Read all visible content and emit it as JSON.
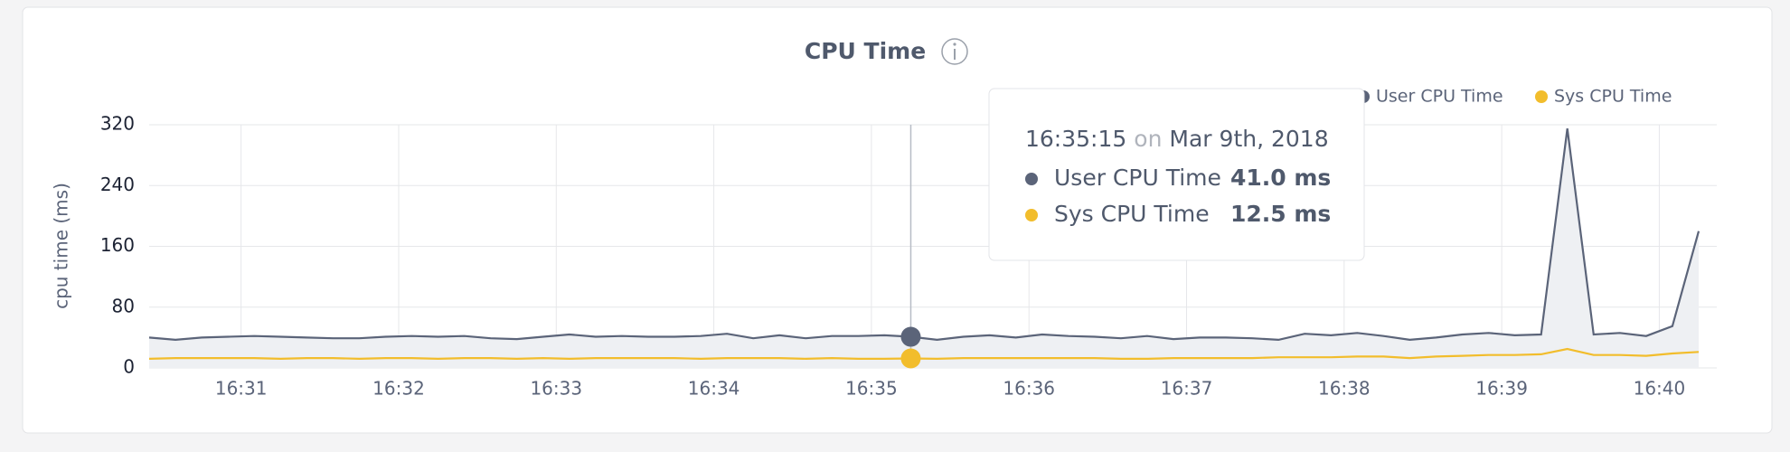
{
  "chart_data": {
    "type": "line",
    "title": "CPU Time",
    "y_label": "cpu time (ms)",
    "x": [
      "16:30:25",
      "16:30:35",
      "16:30:45",
      "16:30:55",
      "16:31:05",
      "16:31:15",
      "16:31:25",
      "16:31:35",
      "16:31:45",
      "16:31:55",
      "16:32:05",
      "16:32:15",
      "16:32:25",
      "16:32:35",
      "16:32:45",
      "16:32:55",
      "16:33:05",
      "16:33:15",
      "16:33:25",
      "16:33:35",
      "16:33:45",
      "16:33:55",
      "16:34:05",
      "16:34:15",
      "16:34:25",
      "16:34:35",
      "16:34:45",
      "16:34:55",
      "16:35:05",
      "16:35:15",
      "16:35:25",
      "16:35:35",
      "16:35:45",
      "16:35:55",
      "16:36:05",
      "16:36:15",
      "16:36:25",
      "16:36:35",
      "16:36:45",
      "16:36:55",
      "16:37:05",
      "16:37:15",
      "16:37:25",
      "16:37:35",
      "16:37:45",
      "16:37:55",
      "16:38:05",
      "16:38:15",
      "16:38:25",
      "16:38:35",
      "16:38:45",
      "16:38:55",
      "16:39:05",
      "16:39:15",
      "16:39:25",
      "16:39:35",
      "16:39:45",
      "16:39:55",
      "16:40:05",
      "16:40:15"
    ],
    "series": [
      {
        "name": "User CPU Time",
        "color": "#5b6479",
        "values": [
          40,
          37,
          40,
          41,
          42,
          41,
          40,
          39,
          39,
          41,
          42,
          41,
          42,
          39,
          38,
          41,
          44,
          41,
          42,
          41,
          41,
          42,
          45,
          39,
          43,
          39,
          42,
          42,
          43,
          41,
          37,
          41,
          43,
          40,
          44,
          42,
          41,
          39,
          42,
          38,
          40,
          40,
          39,
          37,
          45,
          43,
          46,
          42,
          37,
          40,
          44,
          46,
          43,
          44,
          315,
          44,
          46,
          42,
          55,
          180
        ]
      },
      {
        "name": "Sys CPU Time",
        "color": "#f2bd2c",
        "values": [
          12,
          13,
          13,
          13,
          13,
          12,
          13,
          13,
          12,
          13,
          13,
          12,
          13,
          13,
          12,
          13,
          12,
          13,
          13,
          13,
          13,
          12,
          13,
          13,
          13,
          12,
          13,
          12,
          12,
          12.5,
          12,
          13,
          13,
          13,
          13,
          13,
          13,
          12,
          12,
          13,
          13,
          13,
          13,
          14,
          14,
          14,
          15,
          15,
          13,
          15,
          16,
          17,
          17,
          18,
          25,
          17,
          17,
          16,
          19,
          21
        ]
      }
    ],
    "xlim": [
      "16:30:25",
      "16:40:15"
    ],
    "xticks": [
      "16:31",
      "16:32",
      "16:33",
      "16:34",
      "16:35",
      "16:36",
      "16:37",
      "16:38",
      "16:39",
      "16:40"
    ],
    "ylim": [
      0,
      320
    ],
    "yticks": [
      0,
      80,
      160,
      240,
      320
    ],
    "grid": true,
    "legend": "top-right",
    "tooltip": {
      "x": "16:35:15",
      "on": "on",
      "date": "Mar 9th, 2018",
      "value_labels": [
        "41.0 ms",
        "12.5 ms"
      ]
    }
  }
}
